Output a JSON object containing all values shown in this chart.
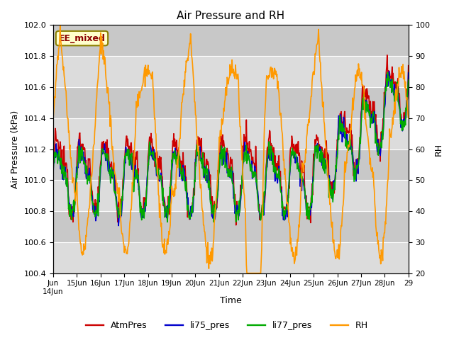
{
  "title": "Air Pressure and RH",
  "ylabel_left": "Air Pressure (kPa)",
  "ylabel_right": "RH",
  "xlabel": "Time",
  "ylim_left": [
    100.4,
    102.0
  ],
  "ylim_right": [
    20,
    100
  ],
  "yticks_left": [
    100.4,
    100.6,
    100.8,
    101.0,
    101.2,
    101.4,
    101.6,
    101.8,
    102.0
  ],
  "yticks_right": [
    20,
    30,
    40,
    50,
    60,
    70,
    80,
    90,
    100
  ],
  "annotation_text": "EE_mixed",
  "annotation_bbox_facecolor": "#ffffcc",
  "annotation_bbox_edgecolor": "#8B8000",
  "colors": {
    "AtmPres": "#cc0000",
    "li75_pres": "#0000cc",
    "li77_pres": "#00aa00",
    "RH": "#ff9900"
  },
  "background_color": "#dcdcdc",
  "band_colors": [
    "#dcdcdc",
    "#c8c8c8"
  ],
  "line_width": 1.2,
  "figsize": [
    6.4,
    4.8
  ],
  "dpi": 100
}
